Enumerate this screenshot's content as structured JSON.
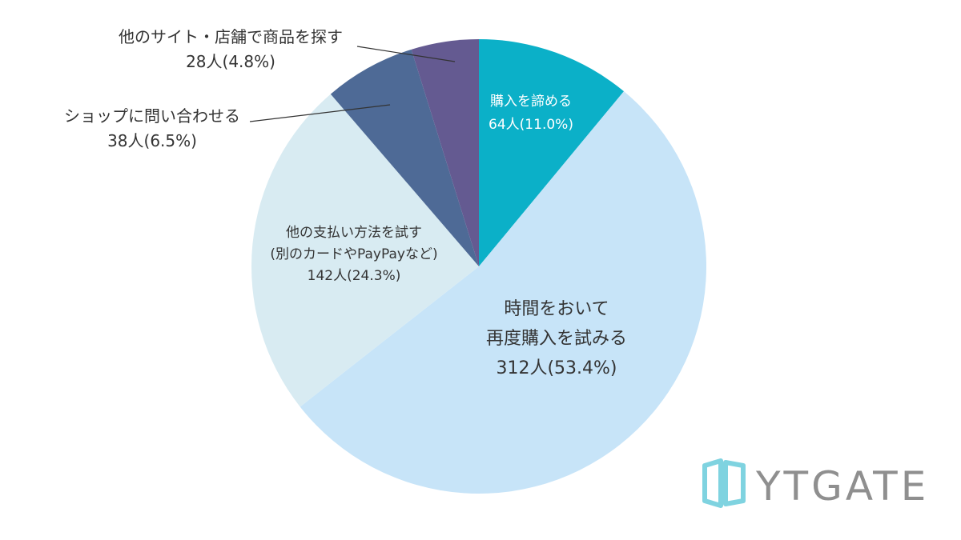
{
  "chart_data": {
    "type": "pie",
    "start": "top",
    "direction": "clockwise",
    "slices": [
      {
        "label_lines": [
          "購入を諦める",
          "64人(11.0%)"
        ],
        "count": 64,
        "percent": 11.0,
        "color": "#0bb0c8",
        "label_color": "#ffffff"
      },
      {
        "label_lines": [
          "時間をおいて",
          "再度購入を試みる",
          "312人(53.4%)"
        ],
        "count": 312,
        "percent": 53.4,
        "color": "#c7e4f8",
        "label_color": "#333333"
      },
      {
        "label_lines": [
          "他の支払い方法を試す",
          "(別のカードやPayPayなど)",
          "142人(24.3%)"
        ],
        "count": 142,
        "percent": 24.3,
        "color": "#d8ebf2",
        "label_color": "#333333"
      },
      {
        "label_lines": [
          "ショップに問い合わせる",
          "38人(6.5%)"
        ],
        "count": 38,
        "percent": 6.5,
        "color": "#4e6a96",
        "label_color": "#333333"
      },
      {
        "label_lines": [
          "他のサイト・店舗で商品を探す",
          "28人(4.8%)"
        ],
        "count": 28,
        "percent": 4.8,
        "color": "#645a91",
        "label_color": "#333333"
      }
    ]
  },
  "logo": {
    "text": "YTGATE",
    "color": "#7fd3e0"
  }
}
